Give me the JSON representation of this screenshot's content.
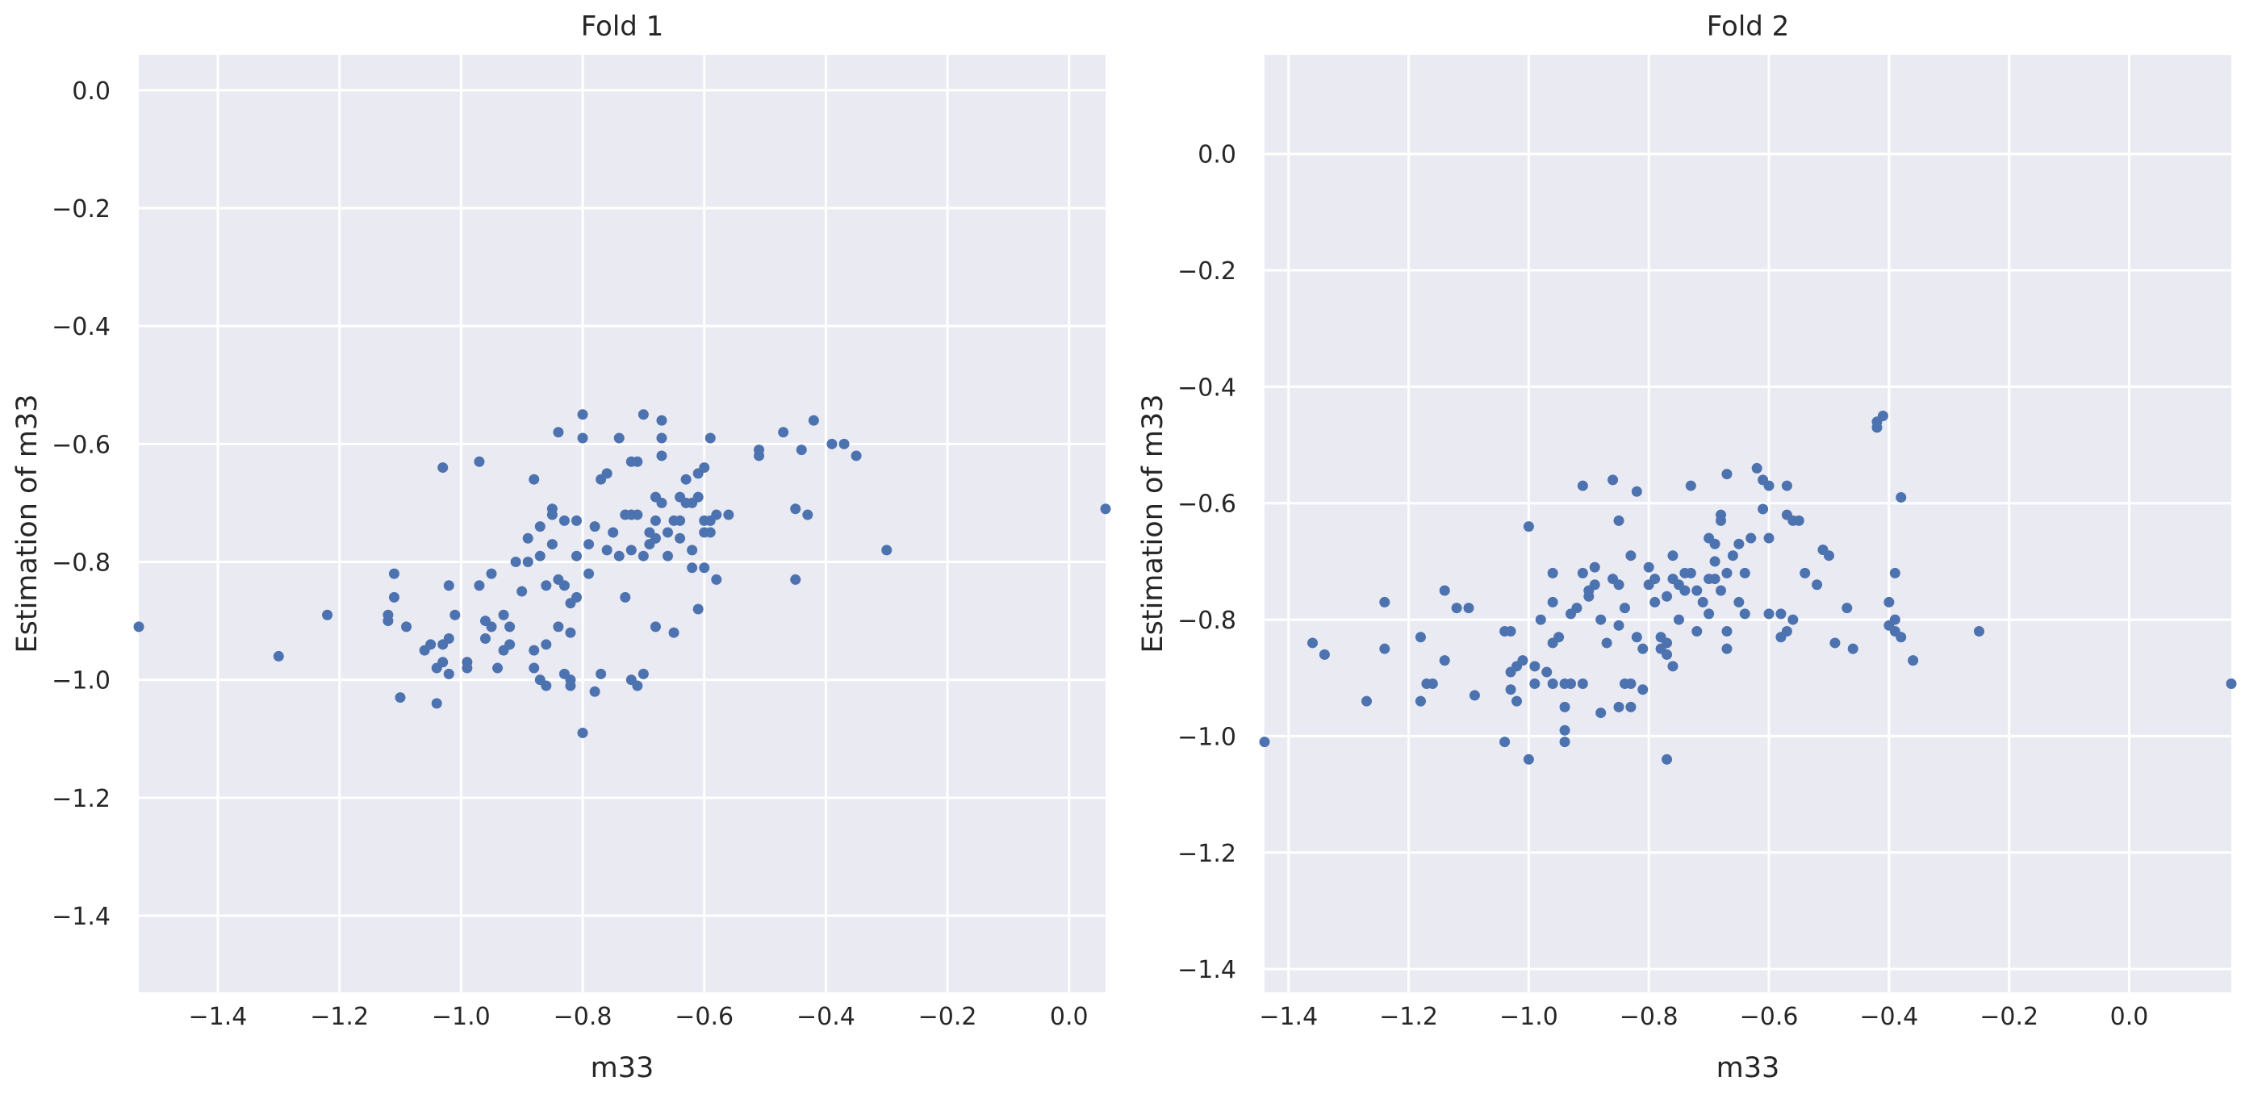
{
  "colors": {
    "plot_background": "#EAEAF2",
    "grid": "#FFFFFF",
    "point": "#4C72B0",
    "text": "#262626"
  },
  "chart_data": [
    {
      "type": "scatter",
      "title": "Fold 1",
      "xlabel": "m33",
      "ylabel": "Estimation of m33",
      "xlim": [
        -1.53,
        0.06
      ],
      "ylim": [
        -1.53,
        0.06
      ],
      "xticks": [
        -1.4,
        -1.2,
        -1.0,
        -0.8,
        -0.6,
        -0.4,
        -0.2,
        0.0
      ],
      "yticks": [
        0.0,
        -0.2,
        -0.4,
        -0.6,
        -0.8,
        -1.0,
        -1.2,
        -1.4
      ],
      "xtick_labels": [
        "−1.4",
        "−1.2",
        "−1.0",
        "−0.8",
        "−0.6",
        "−0.4",
        "−0.2",
        "0.0"
      ],
      "ytick_labels": [
        "0.0",
        "−0.2",
        "−0.4",
        "−0.6",
        "−0.8",
        "−1.0",
        "−1.2",
        "−1.4"
      ],
      "grid": true,
      "legend": false,
      "points": [
        [
          -1.53,
          -0.91
        ],
        [
          -1.3,
          -0.96
        ],
        [
          -1.22,
          -0.89
        ],
        [
          0.06,
          -0.71
        ],
        [
          -0.3,
          -0.78
        ],
        [
          -1.12,
          -0.89
        ],
        [
          -1.12,
          -0.9
        ],
        [
          -1.11,
          -0.86
        ],
        [
          -1.11,
          -0.82
        ],
        [
          -1.1,
          -1.03
        ],
        [
          -1.09,
          -0.91
        ],
        [
          -1.06,
          -0.95
        ],
        [
          -1.05,
          -0.94
        ],
        [
          -1.04,
          -0.98
        ],
        [
          -1.04,
          -1.04
        ],
        [
          -1.03,
          -0.97
        ],
        [
          -1.03,
          -0.94
        ],
        [
          -1.02,
          -0.93
        ],
        [
          -1.02,
          -0.99
        ],
        [
          -1.03,
          -0.64
        ],
        [
          -1.02,
          -0.84
        ],
        [
          -1.01,
          -0.89
        ],
        [
          -0.99,
          -0.97
        ],
        [
          -0.99,
          -0.98
        ],
        [
          -0.97,
          -0.84
        ],
        [
          -0.97,
          -0.63
        ],
        [
          -0.96,
          -0.9
        ],
        [
          -0.96,
          -0.93
        ],
        [
          -0.95,
          -0.82
        ],
        [
          -0.95,
          -0.91
        ],
        [
          -0.94,
          -0.98
        ],
        [
          -0.93,
          -0.95
        ],
        [
          -0.93,
          -0.89
        ],
        [
          -0.92,
          -0.91
        ],
        [
          -0.92,
          -0.94
        ],
        [
          -0.91,
          -0.8
        ],
        [
          -0.9,
          -0.85
        ],
        [
          -0.89,
          -0.76
        ],
        [
          -0.89,
          -0.8
        ],
        [
          -0.88,
          -0.66
        ],
        [
          -0.88,
          -0.95
        ],
        [
          -0.88,
          -0.98
        ],
        [
          -0.87,
          -1.0
        ],
        [
          -0.87,
          -0.74
        ],
        [
          -0.87,
          -0.79
        ],
        [
          -0.86,
          -0.84
        ],
        [
          -0.86,
          -0.94
        ],
        [
          -0.86,
          -1.01
        ],
        [
          -0.85,
          -0.71
        ],
        [
          -0.85,
          -0.72
        ],
        [
          -0.85,
          -0.77
        ],
        [
          -0.84,
          -0.83
        ],
        [
          -0.84,
          -0.91
        ],
        [
          -0.84,
          -0.58
        ],
        [
          -0.83,
          -0.73
        ],
        [
          -0.83,
          -0.84
        ],
        [
          -0.83,
          -0.99
        ],
        [
          -0.82,
          -1.0
        ],
        [
          -0.82,
          -0.87
        ],
        [
          -0.82,
          -0.92
        ],
        [
          -0.82,
          -1.01
        ],
        [
          -0.81,
          -0.79
        ],
        [
          -0.81,
          -0.86
        ],
        [
          -0.81,
          -0.73
        ],
        [
          -0.8,
          -0.59
        ],
        [
          -0.8,
          -0.55
        ],
        [
          -0.8,
          -1.09
        ],
        [
          -0.79,
          -0.77
        ],
        [
          -0.79,
          -0.82
        ],
        [
          -0.78,
          -1.02
        ],
        [
          -0.78,
          -0.74
        ],
        [
          -0.77,
          -0.99
        ],
        [
          -0.77,
          -0.66
        ],
        [
          -0.76,
          -0.65
        ],
        [
          -0.76,
          -0.78
        ],
        [
          -0.75,
          -0.75
        ],
        [
          -0.74,
          -0.79
        ],
        [
          -0.74,
          -0.59
        ],
        [
          -0.73,
          -0.72
        ],
        [
          -0.73,
          -0.86
        ],
        [
          -0.72,
          -0.63
        ],
        [
          -0.72,
          -0.72
        ],
        [
          -0.72,
          -0.78
        ],
        [
          -0.72,
          -1.0
        ],
        [
          -0.71,
          -0.63
        ],
        [
          -0.71,
          -0.72
        ],
        [
          -0.71,
          -1.01
        ],
        [
          -0.7,
          -0.55
        ],
        [
          -0.7,
          -0.99
        ],
        [
          -0.7,
          -0.79
        ],
        [
          -0.69,
          -0.75
        ],
        [
          -0.69,
          -0.77
        ],
        [
          -0.68,
          -0.69
        ],
        [
          -0.68,
          -0.73
        ],
        [
          -0.68,
          -0.76
        ],
        [
          -0.68,
          -0.91
        ],
        [
          -0.67,
          -0.56
        ],
        [
          -0.67,
          -0.59
        ],
        [
          -0.67,
          -0.62
        ],
        [
          -0.67,
          -0.7
        ],
        [
          -0.66,
          -0.75
        ],
        [
          -0.66,
          -0.79
        ],
        [
          -0.65,
          -0.73
        ],
        [
          -0.65,
          -0.92
        ],
        [
          -0.64,
          -0.69
        ],
        [
          -0.64,
          -0.73
        ],
        [
          -0.64,
          -0.76
        ],
        [
          -0.63,
          -0.7
        ],
        [
          -0.63,
          -0.66
        ],
        [
          -0.62,
          -0.7
        ],
        [
          -0.62,
          -0.78
        ],
        [
          -0.62,
          -0.81
        ],
        [
          -0.61,
          -0.65
        ],
        [
          -0.61,
          -0.69
        ],
        [
          -0.61,
          -0.88
        ],
        [
          -0.6,
          -0.73
        ],
        [
          -0.6,
          -0.64
        ],
        [
          -0.6,
          -0.81
        ],
        [
          -0.6,
          -0.75
        ],
        [
          -0.59,
          -0.59
        ],
        [
          -0.59,
          -0.73
        ],
        [
          -0.59,
          -0.75
        ],
        [
          -0.58,
          -0.72
        ],
        [
          -0.58,
          -0.83
        ],
        [
          -0.56,
          -0.72
        ],
        [
          -0.51,
          -0.61
        ],
        [
          -0.51,
          -0.62
        ],
        [
          -0.47,
          -0.58
        ],
        [
          -0.45,
          -0.71
        ],
        [
          -0.45,
          -0.83
        ],
        [
          -0.44,
          -0.61
        ],
        [
          -0.43,
          -0.72
        ],
        [
          -0.42,
          -0.56
        ],
        [
          -0.39,
          -0.6
        ],
        [
          -0.37,
          -0.6
        ],
        [
          -0.35,
          -0.62
        ]
      ]
    },
    {
      "type": "scatter",
      "title": "Fold 2",
      "xlabel": "m33",
      "ylabel": "Estimation of m33",
      "xlim": [
        -1.44,
        0.17
      ],
      "ylim": [
        -1.44,
        0.17
      ],
      "xticks": [
        -1.4,
        -1.2,
        -1.0,
        -0.8,
        -0.6,
        -0.4,
        -0.2,
        0.0
      ],
      "yticks": [
        0.0,
        -0.2,
        -0.4,
        -0.6,
        -0.8,
        -1.0,
        -1.2,
        -1.4
      ],
      "xtick_labels": [
        "−1.4",
        "−1.2",
        "−1.0",
        "−0.8",
        "−0.6",
        "−0.4",
        "−0.2",
        "0.0"
      ],
      "ytick_labels": [
        "0.0",
        "−0.2",
        "−0.4",
        "−0.6",
        "−0.8",
        "−1.0",
        "−1.2",
        "−1.4"
      ],
      "grid": true,
      "legend": false,
      "points": [
        [
          -1.44,
          -1.01
        ],
        [
          -1.36,
          -0.84
        ],
        [
          -1.34,
          -0.86
        ],
        [
          -1.27,
          -0.94
        ],
        [
          -1.24,
          -0.77
        ],
        [
          -1.24,
          -0.85
        ],
        [
          -1.18,
          -0.83
        ],
        [
          -1.18,
          -0.94
        ],
        [
          -1.17,
          -0.91
        ],
        [
          -1.16,
          -0.91
        ],
        [
          -1.14,
          -0.87
        ],
        [
          -1.14,
          -0.75
        ],
        [
          -1.12,
          -0.78
        ],
        [
          -1.1,
          -0.78
        ],
        [
          -1.09,
          -0.93
        ],
        [
          -1.04,
          -0.82
        ],
        [
          -1.04,
          -1.01
        ],
        [
          -1.03,
          -0.82
        ],
        [
          -1.03,
          -0.89
        ],
        [
          -1.03,
          -0.92
        ],
        [
          -1.02,
          -0.88
        ],
        [
          -1.02,
          -0.94
        ],
        [
          -1.01,
          -0.87
        ],
        [
          -1.0,
          -0.64
        ],
        [
          -1.0,
          -1.04
        ],
        [
          -0.99,
          -0.88
        ],
        [
          -0.99,
          -0.91
        ],
        [
          -0.98,
          -0.8
        ],
        [
          -0.97,
          -0.89
        ],
        [
          -0.96,
          -0.84
        ],
        [
          -0.96,
          -0.91
        ],
        [
          -0.96,
          -0.72
        ],
        [
          -0.96,
          -0.77
        ],
        [
          -0.95,
          -0.83
        ],
        [
          -0.94,
          -0.91
        ],
        [
          -0.94,
          -0.95
        ],
        [
          -0.94,
          -0.99
        ],
        [
          -0.94,
          -1.01
        ],
        [
          -0.93,
          -0.79
        ],
        [
          -0.93,
          -0.91
        ],
        [
          -0.92,
          -0.78
        ],
        [
          -0.91,
          -0.72
        ],
        [
          -0.91,
          -0.57
        ],
        [
          -0.91,
          -0.91
        ],
        [
          -0.9,
          -0.75
        ],
        [
          -0.9,
          -0.76
        ],
        [
          -0.89,
          -0.74
        ],
        [
          -0.89,
          -0.71
        ],
        [
          -0.88,
          -0.8
        ],
        [
          -0.88,
          -0.96
        ],
        [
          -0.87,
          -0.84
        ],
        [
          -0.86,
          -0.73
        ],
        [
          -0.86,
          -0.56
        ],
        [
          -0.85,
          -0.63
        ],
        [
          -0.85,
          -0.95
        ],
        [
          -0.85,
          -0.74
        ],
        [
          -0.85,
          -0.81
        ],
        [
          -0.84,
          -0.78
        ],
        [
          -0.84,
          -0.91
        ],
        [
          -0.83,
          -0.69
        ],
        [
          -0.83,
          -0.91
        ],
        [
          -0.83,
          -0.95
        ],
        [
          -0.82,
          -0.58
        ],
        [
          -0.82,
          -0.83
        ],
        [
          -0.81,
          -0.85
        ],
        [
          -0.81,
          -0.92
        ],
        [
          -0.8,
          -0.74
        ],
        [
          -0.8,
          -0.71
        ],
        [
          -0.79,
          -0.73
        ],
        [
          -0.79,
          -0.77
        ],
        [
          -0.78,
          -0.85
        ],
        [
          -0.78,
          -0.83
        ],
        [
          -0.77,
          -0.76
        ],
        [
          -0.77,
          -0.84
        ],
        [
          -0.77,
          -0.86
        ],
        [
          -0.77,
          -1.04
        ],
        [
          -0.76,
          -0.69
        ],
        [
          -0.76,
          -0.73
        ],
        [
          -0.76,
          -0.88
        ],
        [
          -0.75,
          -0.74
        ],
        [
          -0.75,
          -0.8
        ],
        [
          -0.74,
          -0.72
        ],
        [
          -0.74,
          -0.75
        ],
        [
          -0.73,
          -0.57
        ],
        [
          -0.73,
          -0.72
        ],
        [
          -0.72,
          -0.75
        ],
        [
          -0.72,
          -0.82
        ],
        [
          -0.71,
          -0.77
        ],
        [
          -0.7,
          -0.66
        ],
        [
          -0.7,
          -0.73
        ],
        [
          -0.7,
          -0.79
        ],
        [
          -0.69,
          -0.73
        ],
        [
          -0.69,
          -0.67
        ],
        [
          -0.69,
          -0.7
        ],
        [
          -0.68,
          -0.63
        ],
        [
          -0.68,
          -0.62
        ],
        [
          -0.68,
          -0.75
        ],
        [
          -0.67,
          -0.82
        ],
        [
          -0.67,
          -0.55
        ],
        [
          -0.67,
          -0.72
        ],
        [
          -0.67,
          -0.85
        ],
        [
          -0.66,
          -0.69
        ],
        [
          -0.65,
          -0.67
        ],
        [
          -0.65,
          -0.77
        ],
        [
          -0.64,
          -0.79
        ],
        [
          -0.64,
          -0.72
        ],
        [
          -0.63,
          -0.66
        ],
        [
          -0.62,
          -0.54
        ],
        [
          -0.61,
          -0.56
        ],
        [
          -0.61,
          -0.61
        ],
        [
          -0.6,
          -0.57
        ],
        [
          -0.6,
          -0.79
        ],
        [
          -0.6,
          -0.66
        ],
        [
          -0.58,
          -0.79
        ],
        [
          -0.58,
          -0.83
        ],
        [
          -0.57,
          -0.57
        ],
        [
          -0.57,
          -0.62
        ],
        [
          -0.57,
          -0.82
        ],
        [
          -0.56,
          -0.63
        ],
        [
          -0.56,
          -0.8
        ],
        [
          -0.55,
          -0.63
        ],
        [
          -0.54,
          -0.72
        ],
        [
          -0.52,
          -0.74
        ],
        [
          -0.51,
          -0.68
        ],
        [
          -0.5,
          -0.69
        ],
        [
          -0.49,
          -0.84
        ],
        [
          -0.47,
          -0.78
        ],
        [
          -0.46,
          -0.85
        ],
        [
          -0.42,
          -0.46
        ],
        [
          -0.42,
          -0.47
        ],
        [
          -0.41,
          -0.45
        ],
        [
          -0.4,
          -0.77
        ],
        [
          -0.4,
          -0.81
        ],
        [
          -0.39,
          -0.8
        ],
        [
          -0.39,
          -0.72
        ],
        [
          -0.39,
          -0.82
        ],
        [
          -0.38,
          -0.59
        ],
        [
          -0.38,
          -0.83
        ],
        [
          -0.36,
          -0.87
        ],
        [
          -0.25,
          -0.82
        ],
        [
          0.17,
          -0.91
        ]
      ]
    }
  ]
}
